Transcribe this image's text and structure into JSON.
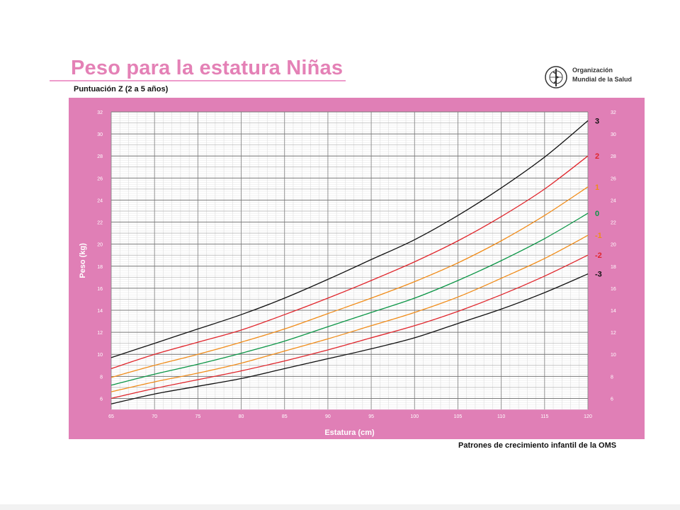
{
  "header": {
    "title": "Peso para la estatura Niñas",
    "subtitle": "Puntuación Z (2 a 5 años)"
  },
  "logo": {
    "icon": "who-emblem-icon",
    "line1": "Organización",
    "line2": "Mundial de la Salud"
  },
  "footer": "Patrones de crecimiento infantil de la OMS",
  "colors": {
    "panel": "#e07fb6",
    "title": "#e481b6",
    "z3": "#111111",
    "z2": "#e0262c",
    "z1": "#f08c1a",
    "z0": "#0d9647"
  },
  "chart_data": {
    "type": "line",
    "xlabel": "Estatura (cm)",
    "ylabel": "Peso (kg)",
    "xlim": [
      65,
      120
    ],
    "ylim": [
      5,
      32
    ],
    "x_ticks": [
      65,
      70,
      75,
      80,
      85,
      90,
      95,
      100,
      105,
      110,
      115,
      120
    ],
    "x_tick_labels": [
      "65",
      "70",
      "75",
      "80",
      "85",
      "90",
      "95",
      "100",
      "105",
      "110",
      "115",
      "120"
    ],
    "y_ticks": [
      6,
      8,
      10,
      12,
      14,
      16,
      18,
      20,
      22,
      24,
      26,
      28,
      30,
      32
    ],
    "y_tick_labels": [
      "6",
      "8",
      "10",
      "12",
      "14",
      "16",
      "18",
      "20",
      "22",
      "24",
      "26",
      "28",
      "30",
      "32"
    ],
    "grid": true,
    "x": [
      65,
      70,
      75,
      80,
      85,
      90,
      95,
      100,
      105,
      110,
      115,
      120
    ],
    "series": [
      {
        "name": "3",
        "color": "#111111",
        "values": [
          9.7,
          11.0,
          12.3,
          13.6,
          15.1,
          16.8,
          18.6,
          20.4,
          22.6,
          25.1,
          27.9,
          31.2
        ]
      },
      {
        "name": "2",
        "color": "#e0262c",
        "values": [
          8.7,
          10.0,
          11.1,
          12.2,
          13.6,
          15.1,
          16.7,
          18.4,
          20.3,
          22.5,
          25.0,
          28.0
        ]
      },
      {
        "name": "1",
        "color": "#f08c1a",
        "values": [
          7.9,
          9.0,
          10.0,
          11.1,
          12.3,
          13.7,
          15.1,
          16.6,
          18.3,
          20.3,
          22.6,
          25.2
        ]
      },
      {
        "name": "0",
        "color": "#0d9647",
        "values": [
          7.2,
          8.2,
          9.1,
          10.1,
          11.2,
          12.5,
          13.8,
          15.1,
          16.7,
          18.5,
          20.5,
          22.8
        ]
      },
      {
        "name": "-1",
        "color": "#f08c1a",
        "values": [
          6.6,
          7.5,
          8.3,
          9.2,
          10.3,
          11.4,
          12.6,
          13.8,
          15.2,
          16.9,
          18.7,
          20.8
        ]
      },
      {
        "name": "-2",
        "color": "#e0262c",
        "values": [
          6.0,
          6.9,
          7.7,
          8.5,
          9.4,
          10.4,
          11.5,
          12.6,
          13.9,
          15.4,
          17.1,
          19.0
        ]
      },
      {
        "name": "-3",
        "color": "#111111",
        "values": [
          5.5,
          6.4,
          7.1,
          7.8,
          8.7,
          9.6,
          10.5,
          11.5,
          12.8,
          14.1,
          15.6,
          17.3
        ]
      }
    ]
  }
}
